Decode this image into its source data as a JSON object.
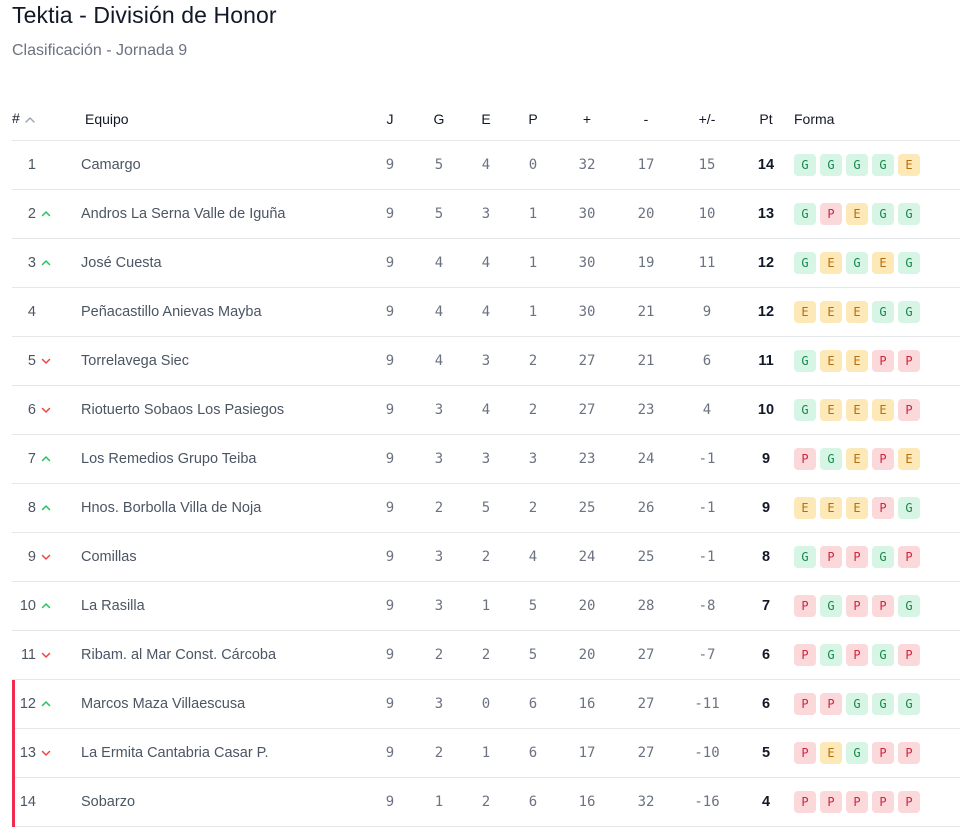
{
  "header": {
    "title": "Tektia - División de Honor",
    "subtitle": "Clasificación - Jornada 9"
  },
  "table": {
    "columns": {
      "pos": "#",
      "team": "Equipo",
      "j": "J",
      "g": "G",
      "e": "E",
      "p": "P",
      "gf": "+",
      "ga": "-",
      "diff": "+/-",
      "pt": "Pt",
      "form": "Forma"
    },
    "sort_icon": "chevron-up-icon",
    "colors": {
      "up": "#22c55e",
      "down": "#ef4444",
      "relegation_bar": "#ef2b4e",
      "win": "#16874b",
      "draw": "#b76e0f",
      "loss": "#d12443"
    },
    "rows": [
      {
        "pos": "1",
        "trend": "none",
        "team": "Camargo",
        "j": "9",
        "g": "5",
        "e": "4",
        "p": "0",
        "gf": "32",
        "ga": "17",
        "diff": "15",
        "pt": "14",
        "form": [
          "G",
          "G",
          "G",
          "G",
          "E"
        ],
        "zone": "none"
      },
      {
        "pos": "2",
        "trend": "up",
        "team": "Andros La Serna Valle de Iguña",
        "j": "9",
        "g": "5",
        "e": "3",
        "p": "1",
        "gf": "30",
        "ga": "20",
        "diff": "10",
        "pt": "13",
        "form": [
          "G",
          "P",
          "E",
          "G",
          "G"
        ],
        "zone": "none"
      },
      {
        "pos": "3",
        "trend": "up",
        "team": "José Cuesta",
        "j": "9",
        "g": "4",
        "e": "4",
        "p": "1",
        "gf": "30",
        "ga": "19",
        "diff": "11",
        "pt": "12",
        "form": [
          "G",
          "E",
          "G",
          "E",
          "G"
        ],
        "zone": "none"
      },
      {
        "pos": "4",
        "trend": "none",
        "team": "Peñacastillo Anievas Mayba",
        "j": "9",
        "g": "4",
        "e": "4",
        "p": "1",
        "gf": "30",
        "ga": "21",
        "diff": "9",
        "pt": "12",
        "form": [
          "E",
          "E",
          "E",
          "G",
          "G"
        ],
        "zone": "none"
      },
      {
        "pos": "5",
        "trend": "down",
        "team": "Torrelavega Siec",
        "j": "9",
        "g": "4",
        "e": "3",
        "p": "2",
        "gf": "27",
        "ga": "21",
        "diff": "6",
        "pt": "11",
        "form": [
          "G",
          "E",
          "E",
          "P",
          "P"
        ],
        "zone": "none"
      },
      {
        "pos": "6",
        "trend": "down",
        "team": "Riotuerto Sobaos Los Pasiegos",
        "j": "9",
        "g": "3",
        "e": "4",
        "p": "2",
        "gf": "27",
        "ga": "23",
        "diff": "4",
        "pt": "10",
        "form": [
          "G",
          "E",
          "E",
          "E",
          "P"
        ],
        "zone": "none"
      },
      {
        "pos": "7",
        "trend": "up",
        "team": "Los Remedios Grupo Teiba",
        "j": "9",
        "g": "3",
        "e": "3",
        "p": "3",
        "gf": "23",
        "ga": "24",
        "diff": "-1",
        "pt": "9",
        "form": [
          "P",
          "G",
          "E",
          "P",
          "E"
        ],
        "zone": "none"
      },
      {
        "pos": "8",
        "trend": "up",
        "team": "Hnos. Borbolla Villa de Noja",
        "j": "9",
        "g": "2",
        "e": "5",
        "p": "2",
        "gf": "25",
        "ga": "26",
        "diff": "-1",
        "pt": "9",
        "form": [
          "E",
          "E",
          "E",
          "P",
          "G"
        ],
        "zone": "none"
      },
      {
        "pos": "9",
        "trend": "down",
        "team": "Comillas",
        "j": "9",
        "g": "3",
        "e": "2",
        "p": "4",
        "gf": "24",
        "ga": "25",
        "diff": "-1",
        "pt": "8",
        "form": [
          "G",
          "P",
          "P",
          "G",
          "P"
        ],
        "zone": "none"
      },
      {
        "pos": "10",
        "trend": "up",
        "team": "La Rasilla",
        "j": "9",
        "g": "3",
        "e": "1",
        "p": "5",
        "gf": "20",
        "ga": "28",
        "diff": "-8",
        "pt": "7",
        "form": [
          "P",
          "G",
          "P",
          "P",
          "G"
        ],
        "zone": "none"
      },
      {
        "pos": "11",
        "trend": "down",
        "team": "Ribam. al Mar Const. Cárcoba",
        "j": "9",
        "g": "2",
        "e": "2",
        "p": "5",
        "gf": "20",
        "ga": "27",
        "diff": "-7",
        "pt": "6",
        "form": [
          "P",
          "G",
          "P",
          "G",
          "P"
        ],
        "zone": "none"
      },
      {
        "pos": "12",
        "trend": "up",
        "team": "Marcos Maza Villaescusa",
        "j": "9",
        "g": "3",
        "e": "0",
        "p": "6",
        "gf": "16",
        "ga": "27",
        "diff": "-11",
        "pt": "6",
        "form": [
          "P",
          "P",
          "G",
          "G",
          "G"
        ],
        "zone": "relegation"
      },
      {
        "pos": "13",
        "trend": "down",
        "team": "La Ermita Cantabria Casar P.",
        "j": "9",
        "g": "2",
        "e": "1",
        "p": "6",
        "gf": "17",
        "ga": "27",
        "diff": "-10",
        "pt": "5",
        "form": [
          "P",
          "E",
          "G",
          "P",
          "P"
        ],
        "zone": "relegation"
      },
      {
        "pos": "14",
        "trend": "none",
        "team": "Sobarzo",
        "j": "9",
        "g": "1",
        "e": "2",
        "p": "6",
        "gf": "16",
        "ga": "32",
        "diff": "-16",
        "pt": "4",
        "form": [
          "P",
          "P",
          "P",
          "P",
          "P"
        ],
        "zone": "relegation"
      }
    ]
  }
}
